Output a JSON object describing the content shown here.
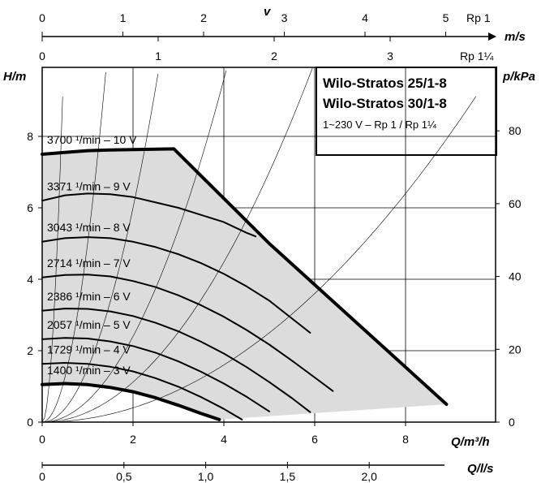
{
  "chart_data": {
    "type": "line",
    "title_lines": [
      "Wilo-Stratos 25/1-8",
      "Wilo-Stratos 30/1-8"
    ],
    "subtitle": "1~230 V – Rp 1 / Rp 1¼",
    "x_axis": {
      "label": "Q/m³/h",
      "range": [
        0,
        9.5
      ],
      "ticks": [
        "0",
        "2",
        "4",
        "6",
        "8"
      ]
    },
    "y_axis_left": {
      "label": "H/m",
      "range": [
        0,
        9.7
      ],
      "ticks": [
        "0",
        "2",
        "4",
        "6",
        "8"
      ]
    },
    "y_axis_right": {
      "label": "p/kPa",
      "ticks": [
        "0",
        "20",
        "40",
        "60",
        "80"
      ]
    },
    "x_axis_bottom": {
      "label": "Q/l/s",
      "ticks": [
        "0",
        "0,5",
        "1,0",
        "1,5",
        "2,0"
      ]
    },
    "v_axis": {
      "label": "v",
      "unit": "m/s"
    },
    "v_axis_rp1": {
      "label": "Rp 1",
      "ticks": [
        "0",
        "1",
        "2",
        "3",
        "4",
        "5"
      ]
    },
    "v_axis_rp114": {
      "label": "Rp 1¼",
      "ticks": [
        "0",
        "1",
        "2",
        "3"
      ]
    },
    "series": [
      {
        "label": "3700 ¹/min – 10 V",
        "bold": true,
        "points": [
          [
            0,
            7.5
          ],
          [
            0.5,
            7.55
          ],
          [
            1.0,
            7.6
          ],
          [
            1.5,
            7.62
          ],
          [
            2.9,
            7.65
          ],
          [
            5.0,
            5.0
          ],
          [
            8.9,
            0.5
          ]
        ]
      },
      {
        "label": "3371 ¹/min – 9 V",
        "bold": false,
        "points": [
          [
            0,
            6.2
          ],
          [
            0.5,
            6.35
          ],
          [
            1.0,
            6.4
          ],
          [
            1.5,
            6.38
          ],
          [
            2.0,
            6.3
          ],
          [
            2.5,
            6.15
          ],
          [
            3.0,
            6.0
          ],
          [
            3.5,
            5.8
          ],
          [
            4.0,
            5.6
          ],
          [
            4.5,
            5.3
          ],
          [
            4.7,
            5.2
          ]
        ]
      },
      {
        "label": "3043 ¹/min – 8 V",
        "bold": false,
        "points": [
          [
            0,
            5.05
          ],
          [
            0.5,
            5.15
          ],
          [
            1.0,
            5.18
          ],
          [
            1.5,
            5.15
          ],
          [
            2.0,
            5.05
          ],
          [
            2.5,
            4.9
          ],
          [
            3.0,
            4.7
          ],
          [
            3.5,
            4.45
          ],
          [
            4.0,
            4.15
          ],
          [
            4.5,
            3.8
          ],
          [
            5.0,
            3.4
          ],
          [
            5.5,
            2.9
          ],
          [
            5.9,
            2.5
          ]
        ]
      },
      {
        "label": "2714 ¹/min – 7 V",
        "bold": false,
        "points": [
          [
            0,
            4.05
          ],
          [
            0.5,
            4.12
          ],
          [
            1.0,
            4.13
          ],
          [
            1.5,
            4.08
          ],
          [
            2.0,
            3.95
          ],
          [
            2.5,
            3.78
          ],
          [
            3.0,
            3.55
          ],
          [
            3.5,
            3.27
          ],
          [
            4.0,
            2.95
          ],
          [
            4.5,
            2.58
          ],
          [
            5.0,
            2.17
          ],
          [
            5.5,
            1.72
          ],
          [
            6.0,
            1.25
          ],
          [
            6.4,
            0.87
          ]
        ]
      },
      {
        "label": "2386 ¹/min – 6 V",
        "bold": false,
        "points": [
          [
            0,
            3.12
          ],
          [
            0.5,
            3.18
          ],
          [
            1.0,
            3.17
          ],
          [
            1.5,
            3.1
          ],
          [
            2.0,
            2.97
          ],
          [
            2.5,
            2.78
          ],
          [
            3.0,
            2.54
          ],
          [
            3.5,
            2.25
          ],
          [
            4.0,
            1.92
          ],
          [
            4.5,
            1.54
          ],
          [
            5.0,
            1.12
          ],
          [
            5.5,
            0.67
          ],
          [
            5.9,
            0.28
          ]
        ]
      },
      {
        "label": "2057 ¹/min – 5 V",
        "bold": false,
        "points": [
          [
            0,
            2.32
          ],
          [
            0.5,
            2.36
          ],
          [
            1.0,
            2.34
          ],
          [
            1.5,
            2.26
          ],
          [
            2.0,
            2.13
          ],
          [
            2.5,
            1.94
          ],
          [
            3.0,
            1.7
          ],
          [
            3.5,
            1.41
          ],
          [
            4.0,
            1.08
          ],
          [
            4.5,
            0.71
          ],
          [
            5.0,
            0.3
          ]
        ]
      },
      {
        "label": "1729 ¹/min – 4 V",
        "bold": false,
        "points": [
          [
            0,
            1.63
          ],
          [
            0.5,
            1.66
          ],
          [
            1.0,
            1.63
          ],
          [
            1.5,
            1.55
          ],
          [
            2.0,
            1.42
          ],
          [
            2.5,
            1.23
          ],
          [
            3.0,
            0.99
          ],
          [
            3.5,
            0.7
          ],
          [
            4.0,
            0.37
          ],
          [
            4.4,
            0.07
          ]
        ]
      },
      {
        "label": "1400 ¹/min – 3 V",
        "bold": true,
        "points": [
          [
            0,
            1.05
          ],
          [
            0.5,
            1.08
          ],
          [
            1.0,
            1.05
          ],
          [
            1.5,
            0.97
          ],
          [
            2.0,
            0.85
          ],
          [
            2.5,
            0.68
          ],
          [
            3.0,
            0.47
          ],
          [
            3.5,
            0.24
          ],
          [
            3.9,
            0.07
          ]
        ]
      }
    ]
  }
}
